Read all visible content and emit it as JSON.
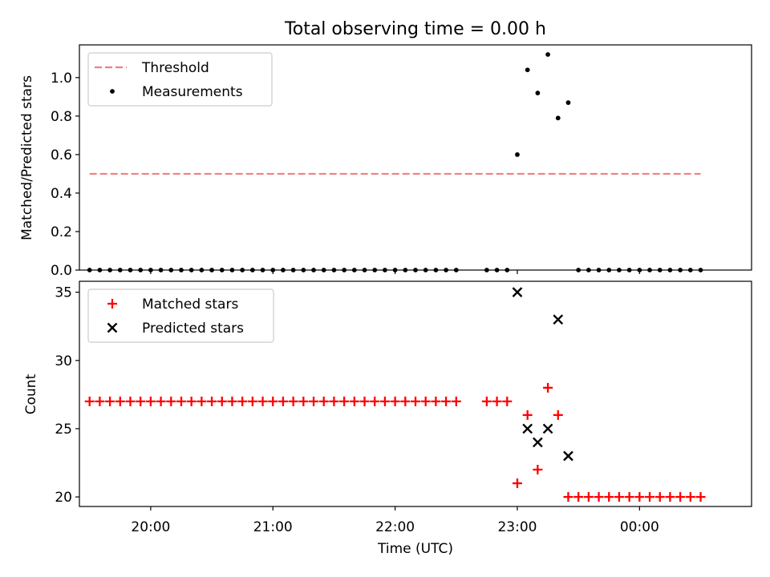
{
  "chart_data": [
    {
      "type": "scatter",
      "title": "Total observing time = 0.00 h",
      "xlabel": "",
      "ylabel": "Matched/Predicted stars",
      "xlim": [
        "19:25",
        "00:55"
      ],
      "ylim": [
        0.0,
        1.17
      ],
      "y_ticks": [
        "0.0",
        "0.2",
        "0.4",
        "0.6",
        "0.8",
        "1.0"
      ],
      "x_ticks": [
        "20:00",
        "21:00",
        "22:00",
        "23:00",
        "00:00"
      ],
      "show_x_tick_labels": false,
      "legend": {
        "placement": "upper left",
        "entries": [
          "Threshold",
          "Measurements"
        ]
      },
      "threshold": {
        "name": "Threshold",
        "y": 0.5,
        "x_start": "19:30",
        "x_end": "00:30",
        "color": "#f08080",
        "style": "dashed"
      },
      "series": [
        {
          "name": "Measurements",
          "marker": "dot",
          "color": "#000000",
          "points": [
            [
              "19:30",
              0.0
            ],
            [
              "19:35",
              0.0
            ],
            [
              "19:40",
              0.0
            ],
            [
              "19:45",
              0.0
            ],
            [
              "19:50",
              0.0
            ],
            [
              "19:55",
              0.0
            ],
            [
              "20:00",
              0.0
            ],
            [
              "20:05",
              0.0
            ],
            [
              "20:10",
              0.0
            ],
            [
              "20:15",
              0.0
            ],
            [
              "20:20",
              0.0
            ],
            [
              "20:25",
              0.0
            ],
            [
              "20:30",
              0.0
            ],
            [
              "20:35",
              0.0
            ],
            [
              "20:40",
              0.0
            ],
            [
              "20:45",
              0.0
            ],
            [
              "20:50",
              0.0
            ],
            [
              "20:55",
              0.0
            ],
            [
              "21:00",
              0.0
            ],
            [
              "21:05",
              0.0
            ],
            [
              "21:10",
              0.0
            ],
            [
              "21:15",
              0.0
            ],
            [
              "21:20",
              0.0
            ],
            [
              "21:25",
              0.0
            ],
            [
              "21:30",
              0.0
            ],
            [
              "21:35",
              0.0
            ],
            [
              "21:40",
              0.0
            ],
            [
              "21:45",
              0.0
            ],
            [
              "21:50",
              0.0
            ],
            [
              "21:55",
              0.0
            ],
            [
              "22:00",
              0.0
            ],
            [
              "22:05",
              0.0
            ],
            [
              "22:10",
              0.0
            ],
            [
              "22:15",
              0.0
            ],
            [
              "22:20",
              0.0
            ],
            [
              "22:25",
              0.0
            ],
            [
              "22:30",
              0.0
            ],
            [
              "22:45",
              0.0
            ],
            [
              "22:50",
              0.0
            ],
            [
              "22:55",
              0.0
            ],
            [
              "23:00",
              0.6
            ],
            [
              "23:05",
              1.04
            ],
            [
              "23:10",
              0.92
            ],
            [
              "23:15",
              1.12
            ],
            [
              "23:20",
              0.79
            ],
            [
              "23:25",
              0.87
            ],
            [
              "23:30",
              0.0
            ],
            [
              "23:35",
              0.0
            ],
            [
              "23:40",
              0.0
            ],
            [
              "23:45",
              0.0
            ],
            [
              "23:50",
              0.0
            ],
            [
              "23:55",
              0.0
            ],
            [
              "00:00",
              0.0
            ],
            [
              "00:05",
              0.0
            ],
            [
              "00:10",
              0.0
            ],
            [
              "00:15",
              0.0
            ],
            [
              "00:20",
              0.0
            ],
            [
              "00:25",
              0.0
            ],
            [
              "00:30",
              0.0
            ]
          ]
        }
      ]
    },
    {
      "type": "scatter",
      "title": "",
      "xlabel": "Time (UTC)",
      "ylabel": "Count",
      "xlim": [
        "19:25",
        "00:55"
      ],
      "ylim": [
        19.3,
        35.8
      ],
      "y_ticks": [
        "20",
        "25",
        "30",
        "35"
      ],
      "x_ticks": [
        "20:00",
        "21:00",
        "22:00",
        "23:00",
        "00:00"
      ],
      "show_x_tick_labels": true,
      "legend": {
        "placement": "upper left",
        "entries": [
          "Matched stars",
          "Predicted stars"
        ]
      },
      "series": [
        {
          "name": "Matched stars",
          "marker": "plus",
          "color": "#ff0000",
          "points": [
            [
              "19:30",
              27
            ],
            [
              "19:35",
              27
            ],
            [
              "19:40",
              27
            ],
            [
              "19:45",
              27
            ],
            [
              "19:50",
              27
            ],
            [
              "19:55",
              27
            ],
            [
              "20:00",
              27
            ],
            [
              "20:05",
              27
            ],
            [
              "20:10",
              27
            ],
            [
              "20:15",
              27
            ],
            [
              "20:20",
              27
            ],
            [
              "20:25",
              27
            ],
            [
              "20:30",
              27
            ],
            [
              "20:35",
              27
            ],
            [
              "20:40",
              27
            ],
            [
              "20:45",
              27
            ],
            [
              "20:50",
              27
            ],
            [
              "20:55",
              27
            ],
            [
              "21:00",
              27
            ],
            [
              "21:05",
              27
            ],
            [
              "21:10",
              27
            ],
            [
              "21:15",
              27
            ],
            [
              "21:20",
              27
            ],
            [
              "21:25",
              27
            ],
            [
              "21:30",
              27
            ],
            [
              "21:35",
              27
            ],
            [
              "21:40",
              27
            ],
            [
              "21:45",
              27
            ],
            [
              "21:50",
              27
            ],
            [
              "21:55",
              27
            ],
            [
              "22:00",
              27
            ],
            [
              "22:05",
              27
            ],
            [
              "22:10",
              27
            ],
            [
              "22:15",
              27
            ],
            [
              "22:20",
              27
            ],
            [
              "22:25",
              27
            ],
            [
              "22:30",
              27
            ],
            [
              "22:45",
              27
            ],
            [
              "22:50",
              27
            ],
            [
              "22:55",
              27
            ],
            [
              "23:00",
              21
            ],
            [
              "23:05",
              26
            ],
            [
              "23:10",
              22
            ],
            [
              "23:15",
              28
            ],
            [
              "23:20",
              26
            ],
            [
              "23:25",
              20
            ],
            [
              "23:30",
              20
            ],
            [
              "23:35",
              20
            ],
            [
              "23:40",
              20
            ],
            [
              "23:45",
              20
            ],
            [
              "23:50",
              20
            ],
            [
              "23:55",
              20
            ],
            [
              "00:00",
              20
            ],
            [
              "00:05",
              20
            ],
            [
              "00:10",
              20
            ],
            [
              "00:15",
              20
            ],
            [
              "00:20",
              20
            ],
            [
              "00:25",
              20
            ],
            [
              "00:30",
              20
            ]
          ]
        },
        {
          "name": "Predicted stars",
          "marker": "x",
          "color": "#000000",
          "points": [
            [
              "23:00",
              35
            ],
            [
              "23:05",
              25
            ],
            [
              "23:10",
              24
            ],
            [
              "23:15",
              25
            ],
            [
              "23:20",
              33
            ],
            [
              "23:25",
              23
            ]
          ]
        }
      ]
    }
  ]
}
